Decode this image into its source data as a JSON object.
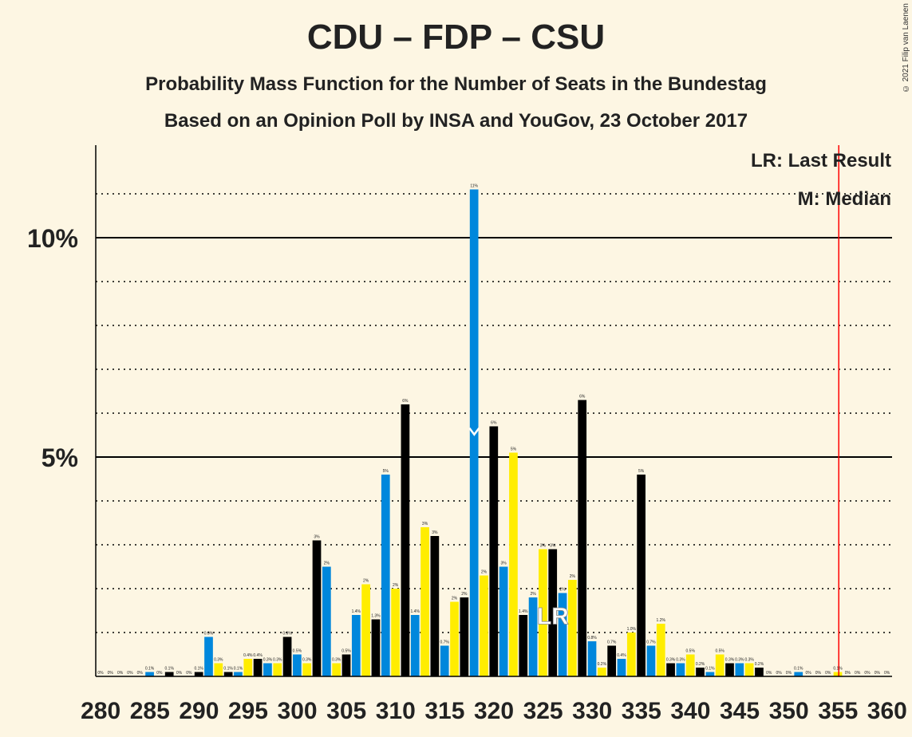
{
  "title": "CDU – FDP – CSU",
  "subtitle1": "Probability Mass Function for the Number of Seats in the Bundestag",
  "subtitle2": "Based on an Opinion Poll by INSA and YouGov, 23 October 2017",
  "copyright": "© 2021 Filip van Laenen",
  "legend": {
    "last_result": "LR: Last Result",
    "median": "M: Median"
  },
  "markers": {
    "lr_label": "LR",
    "median_label": "M"
  },
  "colors": {
    "cdu": "#000000",
    "csu": "#0087DC",
    "fdp": "#FFED00",
    "majority_line": "#FF0000",
    "bg": "#FDF6E3"
  },
  "chart_data": {
    "type": "bar",
    "x_start": 280,
    "x_end": 360,
    "ylim": [
      0,
      12
    ],
    "y_ticks": [
      {
        "value": 5,
        "label": "5%"
      },
      {
        "value": 10,
        "label": "10%"
      }
    ],
    "x_tick_labels": [
      "280",
      "285",
      "290",
      "295",
      "300",
      "305",
      "310",
      "315",
      "320",
      "325",
      "330",
      "335",
      "340",
      "345",
      "350",
      "355",
      "360"
    ],
    "median_seat": 318,
    "last_result_seat": 326,
    "majority_seat": 355,
    "values": [
      0,
      0,
      0,
      0,
      0,
      0.1,
      0,
      0.1,
      0,
      0,
      0.1,
      0.9,
      0.3,
      0.1,
      0.1,
      0.4,
      0.4,
      0.3,
      0.3,
      0.9,
      0.5,
      0.3,
      3.1,
      2.5,
      0.3,
      0.5,
      1.4,
      2.1,
      1.3,
      4.6,
      2.0,
      6.2,
      1.4,
      3.4,
      3.2,
      0.7,
      1.7,
      1.8,
      11.1,
      2.3,
      5.7,
      2.5,
      5.1,
      1.4,
      1.8,
      2.9,
      2.9,
      1.9,
      2.2,
      6.3,
      0.8,
      0.2,
      0.7,
      0.4,
      1.0,
      4.6,
      0.7,
      1.2,
      0.3,
      0.3,
      0.5,
      0.2,
      0.1,
      0.5,
      0.3,
      0.3,
      0.3,
      0.2,
      0,
      0,
      0,
      0.1,
      0,
      0,
      0,
      0.1,
      0,
      0,
      0,
      0,
      0
    ],
    "labels": [
      "0%",
      "0%",
      "0%",
      "0%",
      "0%",
      "0.1%",
      "0%",
      "0.1%",
      "0%",
      "0%",
      "0.1%",
      "0.9%",
      "0.3%",
      "0.1%",
      "0.1%",
      "0.4%",
      "0.4%",
      "0.3%",
      "0.3%",
      "0.9%",
      "0.5%",
      "0.3%",
      "3%",
      "2%",
      "0.3%",
      "0.5%",
      "1.4%",
      "2%",
      "1.3%",
      "5%",
      "2%",
      "6%",
      "1.4%",
      "3%",
      "3%",
      "0.7%",
      "2%",
      "2%",
      "11%",
      "2%",
      "6%",
      "3%",
      "5%",
      "1.4%",
      "2%",
      "3%",
      "3%",
      "2%",
      "2%",
      "6%",
      "0.8%",
      "0.2%",
      "0.7%",
      "0.4%",
      "1.0%",
      "5%",
      "0.7%",
      "1.2%",
      "0.3%",
      "0.3%",
      "0.5%",
      "0.2%",
      "0.1%",
      "0.5%",
      "0.3%",
      "0.3%",
      "0.3%",
      "0.2%",
      "0%",
      "0%",
      "0%",
      "0.1%",
      "0%",
      "0%",
      "0%",
      "0.1%",
      "0%",
      "0%",
      "0%",
      "0%",
      "0%"
    ]
  }
}
